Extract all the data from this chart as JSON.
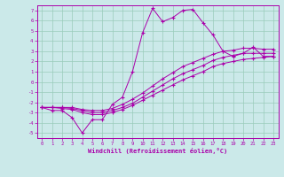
{
  "xlabel": "Windchill (Refroidissement éolien,°C)",
  "xlim": [
    -0.5,
    23.5
  ],
  "ylim": [
    -5.5,
    7.5
  ],
  "xticks": [
    0,
    1,
    2,
    3,
    4,
    5,
    6,
    7,
    8,
    9,
    10,
    11,
    12,
    13,
    14,
    15,
    16,
    17,
    18,
    19,
    20,
    21,
    22,
    23
  ],
  "yticks": [
    -5,
    -4,
    -3,
    -2,
    -1,
    0,
    1,
    2,
    3,
    4,
    5,
    6,
    7
  ],
  "bg_color": "#cbe9e9",
  "line_color": "#aa00aa",
  "grid_color": "#99ccbb",
  "line1_x": [
    0,
    1,
    2,
    3,
    4,
    5,
    6,
    7,
    8,
    9,
    10,
    11,
    12,
    13,
    14,
    15,
    16,
    17,
    18,
    19,
    20,
    21,
    22,
    23
  ],
  "line1_y": [
    -2.5,
    -2.8,
    -2.8,
    -3.5,
    -5.0,
    -3.7,
    -3.7,
    -2.2,
    -1.5,
    1.0,
    4.8,
    7.2,
    5.9,
    6.3,
    7.0,
    7.1,
    5.8,
    4.6,
    3.0,
    2.5,
    2.8,
    3.4,
    2.5,
    2.5
  ],
  "line2_x": [
    0,
    1,
    2,
    3,
    4,
    5,
    6,
    7,
    8,
    9,
    10,
    11,
    12,
    13,
    14,
    15,
    16,
    17,
    18,
    19,
    20,
    21,
    22,
    23
  ],
  "line2_y": [
    -2.5,
    -2.5,
    -2.6,
    -2.7,
    -3.0,
    -3.2,
    -3.2,
    -3.0,
    -2.7,
    -2.3,
    -1.8,
    -1.3,
    -0.8,
    -0.3,
    0.2,
    0.6,
    1.0,
    1.5,
    1.8,
    2.0,
    2.2,
    2.3,
    2.4,
    2.5
  ],
  "line3_x": [
    0,
    1,
    2,
    3,
    4,
    5,
    6,
    7,
    8,
    9,
    10,
    11,
    12,
    13,
    14,
    15,
    16,
    17,
    18,
    19,
    20,
    21,
    22,
    23
  ],
  "line3_y": [
    -2.5,
    -2.5,
    -2.5,
    -2.6,
    -2.8,
    -3.0,
    -3.0,
    -2.8,
    -2.5,
    -2.1,
    -1.5,
    -0.9,
    -0.3,
    0.3,
    0.8,
    1.2,
    1.6,
    2.1,
    2.4,
    2.6,
    2.8,
    2.8,
    2.8,
    2.8
  ],
  "line4_x": [
    0,
    1,
    2,
    3,
    4,
    5,
    6,
    7,
    8,
    9,
    10,
    11,
    12,
    13,
    14,
    15,
    16,
    17,
    18,
    19,
    20,
    21,
    22,
    23
  ],
  "line4_y": [
    -2.5,
    -2.5,
    -2.5,
    -2.5,
    -2.7,
    -2.8,
    -2.8,
    -2.6,
    -2.2,
    -1.7,
    -1.1,
    -0.4,
    0.3,
    0.9,
    1.5,
    1.9,
    2.3,
    2.7,
    3.0,
    3.1,
    3.3,
    3.3,
    3.2,
    3.2
  ],
  "marker": "+",
  "markersize": 3,
  "linewidth": 0.7
}
